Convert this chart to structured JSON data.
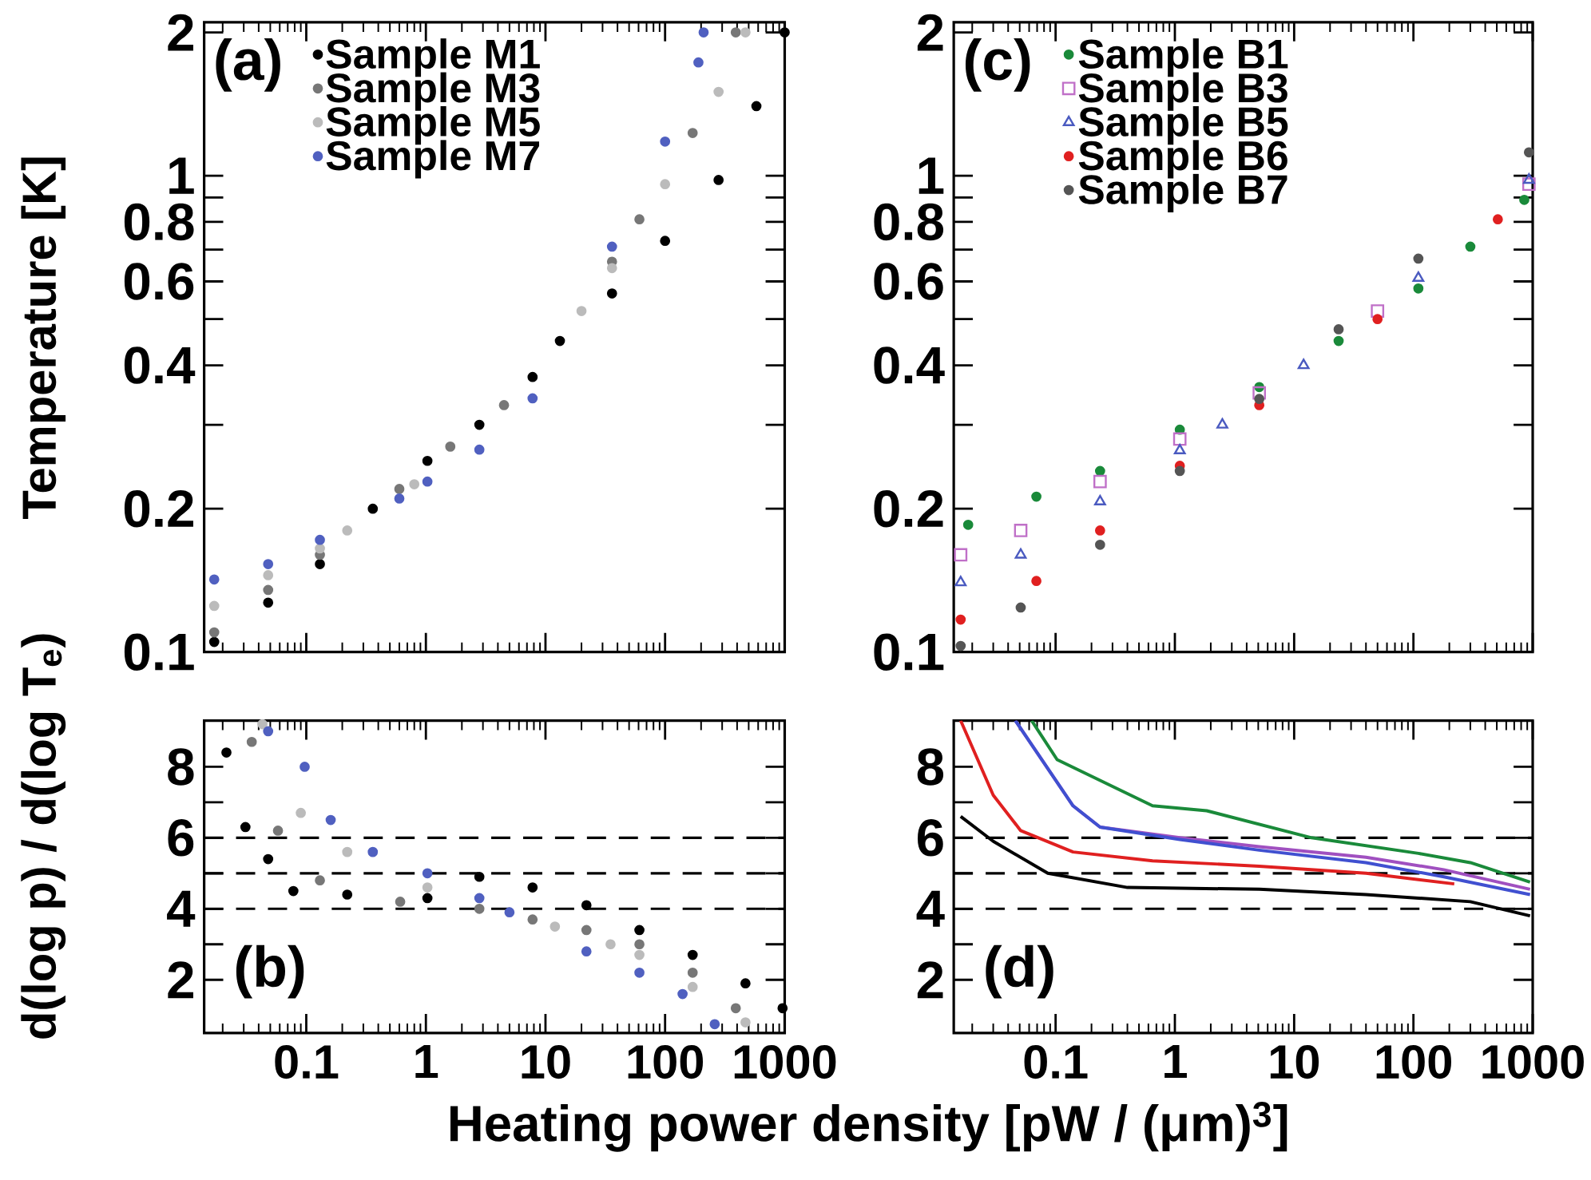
{
  "chart_data": [
    {
      "type": "scatter",
      "ylabel": "Temperature [K]",
      "annotations": [
        "(a)"
      ],
      "log": "xy",
      "xlim": [
        0.014,
        1000
      ],
      "ylim": [
        0.1,
        2.1
      ],
      "xticks": [
        0.1,
        1,
        10,
        100,
        1000
      ],
      "yticks": [
        0.1,
        0.2,
        {
          "value": 0.3,
          "label": null
        },
        0.4,
        {
          "value": 0.5,
          "label": null
        },
        0.6,
        {
          "value": 0.7,
          "label": null
        },
        0.8,
        {
          "value": 0.9,
          "label": null
        },
        1,
        2
      ],
      "tick_labels": "y",
      "legend": "top left",
      "marker": "circle",
      "series": [
        {
          "name": "Sample M1",
          "color": "#000000",
          "x": [
            0.017,
            0.048,
            0.13,
            0.36,
            1.03,
            2.8,
            7.8,
            13.2,
            36,
            100,
            280,
            580,
            1000
          ],
          "values": [
            0.105,
            0.127,
            0.153,
            0.2,
            0.252,
            0.3,
            0.378,
            0.45,
            0.566,
            0.73,
            0.98,
            1.4,
            2.0
          ]
        },
        {
          "name": "Sample M3",
          "color": "#777777",
          "x": [
            0.017,
            0.048,
            0.13,
            0.6,
            1.6,
            4.5,
            36,
            61,
            170,
            390
          ],
          "values": [
            0.11,
            0.135,
            0.16,
            0.22,
            0.27,
            0.33,
            0.66,
            0.81,
            1.23,
            2.0
          ]
        },
        {
          "name": "Sample M5",
          "color": "#bbbbbb",
          "x": [
            0.017,
            0.048,
            0.13,
            0.22,
            0.8,
            20,
            36,
            100,
            280,
            470
          ],
          "values": [
            0.125,
            0.145,
            0.165,
            0.18,
            0.225,
            0.52,
            0.64,
            0.96,
            1.5,
            2.0
          ]
        },
        {
          "name": "Sample M7",
          "color": "#5060c0",
          "x": [
            0.017,
            0.048,
            0.13,
            0.6,
            1.03,
            2.8,
            7.8,
            36,
            100,
            190,
            210
          ],
          "values": [
            0.142,
            0.153,
            0.172,
            0.21,
            0.228,
            0.266,
            0.341,
            0.71,
            1.18,
            1.73,
            2.0
          ]
        }
      ]
    },
    {
      "type": "scatter",
      "annotations": [
        "(c)"
      ],
      "log": "xy",
      "xlim": [
        0.014,
        1000
      ],
      "ylim": [
        0.1,
        2.1
      ],
      "xticks": [
        0.1,
        1,
        10,
        100,
        1000
      ],
      "yticks": [
        0.1,
        0.2,
        {
          "value": 0.3,
          "label": null
        },
        0.4,
        {
          "value": 0.5,
          "label": null
        },
        0.6,
        {
          "value": 0.7,
          "label": null
        },
        0.8,
        {
          "value": 0.9,
          "label": null
        },
        1,
        2
      ],
      "tick_labels": "y",
      "legend": "top left",
      "marker": "circle",
      "series": [
        {
          "name": "Sample B1",
          "color": "#1a8a3a",
          "x": [
            0.0185,
            0.069,
            0.236,
            1.1,
            5.1,
            23.6,
            110,
            300,
            850
          ],
          "values": [
            0.185,
            0.212,
            0.24,
            0.293,
            0.36,
            0.45,
            0.58,
            0.71,
            0.89
          ]
        },
        {
          "name": "Sample B3",
          "color": "#c070c8",
          "marker": "square",
          "x": [
            0.016,
            0.051,
            0.236,
            1.1,
            5.1,
            50,
            930
          ],
          "values": [
            0.16,
            0.18,
            0.228,
            0.28,
            0.35,
            0.52,
            0.96
          ]
        },
        {
          "name": "Sample B5",
          "color": "#4a5ac0",
          "marker": "triangle",
          "x": [
            0.016,
            0.051,
            0.236,
            1.1,
            2.5,
            12,
            110,
            930
          ],
          "values": [
            0.14,
            0.16,
            0.207,
            0.265,
            0.3,
            0.4,
            0.61,
            0.98
          ]
        },
        {
          "name": "Sample B6",
          "color": "#e02020",
          "x": [
            0.016,
            0.069,
            0.236,
            1.1,
            5.1,
            50,
            510
          ],
          "values": [
            0.117,
            0.141,
            0.18,
            0.246,
            0.33,
            0.5,
            0.81
          ]
        },
        {
          "name": "Sample B7",
          "color": "#555555",
          "x": [
            0.016,
            0.051,
            0.236,
            1.1,
            5.1,
            23.6,
            110,
            930
          ],
          "values": [
            0.103,
            0.124,
            0.168,
            0.24,
            0.34,
            0.476,
            0.67,
            1.12
          ]
        }
      ]
    },
    {
      "type": "scatter",
      "ylabel": "d(log p) / d(log T$_{e}$)",
      "xlabel": "Heating power density [pW / (μm)$^{3}$]",
      "annotations": [
        "(b)"
      ],
      "log": "x",
      "xlim": [
        0.014,
        1000
      ],
      "ylim": [
        0.5,
        9.3
      ],
      "xticks": [
        0.1,
        1,
        10,
        100,
        1000
      ],
      "yticks": [
        2,
        {
          "value": 3,
          "label": null
        },
        4,
        {
          "value": 5,
          "label": null
        },
        6,
        {
          "value": 7,
          "label": null
        },
        8
      ],
      "marker": "circle",
      "ref_lines": [
        {
          "axis": "y",
          "value": 4,
          "color": "#000000",
          "line_style": "dashed"
        },
        {
          "axis": "y",
          "value": 5,
          "color": "#000000",
          "line_style": "dashed"
        },
        {
          "axis": "y",
          "value": 6,
          "color": "#000000",
          "line_style": "dashed"
        }
      ],
      "series": [
        {
          "color": "#000000",
          "x": [
            0.0215,
            0.031,
            0.048,
            0.078,
            0.22,
            1.03,
            2.8,
            7.8,
            22,
            61,
            170,
            470,
            960
          ],
          "values": [
            8.4,
            6.3,
            5.4,
            4.5,
            4.4,
            4.3,
            4.9,
            4.6,
            4.1,
            3.4,
            2.7,
            1.9,
            1.2
          ]
        },
        {
          "color": "#777777",
          "x": [
            0.035,
            0.058,
            0.13,
            0.61,
            2.8,
            7.8,
            22,
            61,
            170,
            390
          ],
          "values": [
            8.7,
            6.2,
            4.8,
            4.2,
            4.0,
            3.7,
            3.4,
            3.0,
            2.2,
            1.2
          ]
        },
        {
          "color": "#bbbbbb",
          "x": [
            0.043,
            0.09,
            0.22,
            1.03,
            12,
            35,
            61,
            170,
            470
          ],
          "values": [
            9.2,
            6.7,
            5.6,
            4.6,
            3.5,
            3.0,
            2.7,
            1.8,
            0.8
          ]
        },
        {
          "color": "#5060c0",
          "x": [
            0.048,
            0.097,
            0.16,
            0.36,
            1.03,
            2.8,
            5,
            22,
            61,
            140,
            260
          ],
          "values": [
            9.0,
            8.0,
            6.5,
            5.6,
            5.0,
            4.3,
            3.9,
            2.8,
            2.2,
            1.6,
            0.75
          ]
        }
      ]
    },
    {
      "type": "line",
      "annotations": [
        "(d)"
      ],
      "log": "x",
      "xlim": [
        0.014,
        1000
      ],
      "ylim": [
        0.5,
        9.3
      ],
      "xticks": [
        0.1,
        1,
        10,
        100,
        1000
      ],
      "yticks": [
        2,
        {
          "value": 3,
          "label": null
        },
        4,
        {
          "value": 5,
          "label": null
        },
        6,
        {
          "value": 7,
          "label": null
        },
        8
      ],
      "line_style": "solid",
      "ref_lines": [
        {
          "axis": "y",
          "value": 4,
          "color": "#000000",
          "line_style": "dashed"
        },
        {
          "axis": "y",
          "value": 5,
          "color": "#000000",
          "line_style": "dashed"
        },
        {
          "axis": "y",
          "value": 6,
          "color": "#000000",
          "line_style": "dashed"
        }
      ],
      "series": [
        {
          "color": "#1a8a3a",
          "x": [
            0.063,
            0.103,
            0.65,
            1.85,
            14,
            110,
            300,
            950
          ],
          "values": [
            9.3,
            8.2,
            6.9,
            6.76,
            6.0,
            5.56,
            5.3,
            4.75
          ]
        },
        {
          "color": "#a050c0",
          "x": [
            0.046,
            0.14,
            0.236,
            1.1,
            5.1,
            40,
            180,
            950
          ],
          "values": [
            9.3,
            6.9,
            6.3,
            6.0,
            5.75,
            5.45,
            5.1,
            4.55
          ]
        },
        {
          "color": "#4050d0",
          "x": [
            0.046,
            0.14,
            0.236,
            1.1,
            5.1,
            40,
            180,
            950
          ],
          "values": [
            9.3,
            6.9,
            6.3,
            5.95,
            5.65,
            5.3,
            4.9,
            4.4
          ]
        },
        {
          "color": "#e02020",
          "x": [
            0.016,
            0.03,
            0.051,
            0.14,
            0.65,
            5.1,
            40,
            220
          ],
          "values": [
            9.3,
            7.2,
            6.2,
            5.6,
            5.35,
            5.2,
            5.0,
            4.7
          ]
        },
        {
          "color": "#000000",
          "x": [
            0.016,
            0.03,
            0.086,
            0.4,
            5.1,
            40,
            300,
            950
          ],
          "values": [
            6.6,
            5.9,
            5.0,
            4.6,
            4.55,
            4.4,
            4.2,
            3.8
          ]
        }
      ]
    }
  ]
}
